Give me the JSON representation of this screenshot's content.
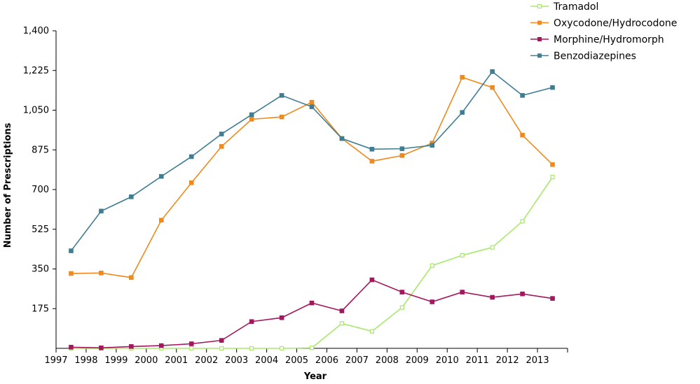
{
  "chart_data": {
    "type": "line",
    "title": "",
    "xlabel": "Year",
    "ylabel": "Number of Prescriptions",
    "x": [
      "1997",
      "1998",
      "1999",
      "2000",
      "2001",
      "2002",
      "2003",
      "2004",
      "2005",
      "2006",
      "2007",
      "2008",
      "2009",
      "2010",
      "2011",
      "2012",
      "2013"
    ],
    "ylim": [
      0,
      1400
    ],
    "y_ticks": [
      175,
      350,
      525,
      700,
      875,
      1050,
      1225,
      1400
    ],
    "y_tick_labels": [
      "175",
      "350",
      "525",
      "700",
      "875",
      "1,050",
      "1,225",
      "1,400"
    ],
    "grid": false,
    "legend_position": "top-right",
    "series": [
      {
        "name": "Tramadol",
        "color": "#a8e86a",
        "marker": "hollow-square",
        "values": [
          0,
          0,
          0,
          0,
          0,
          0,
          0,
          0,
          2,
          110,
          75,
          180,
          365,
          410,
          445,
          560,
          755
        ]
      },
      {
        "name": "Oxycodone/Hydrocodone",
        "color": "#ee8a1e",
        "marker": "square",
        "values": [
          330,
          332,
          312,
          565,
          730,
          890,
          1010,
          1020,
          1085,
          925,
          825,
          850,
          905,
          1195,
          1150,
          940,
          810
        ]
      },
      {
        "name": "Morphine/Hydromorph",
        "color": "#a3175e",
        "marker": "square",
        "values": [
          5,
          2,
          8,
          12,
          20,
          35,
          118,
          135,
          200,
          165,
          302,
          248,
          205,
          248,
          225,
          240,
          220
        ]
      },
      {
        "name": "Benzodiazepines",
        "color": "#3f7d94",
        "marker": "square",
        "values": [
          430,
          605,
          668,
          758,
          845,
          945,
          1030,
          1115,
          1065,
          925,
          878,
          880,
          895,
          1040,
          1220,
          1115,
          1150
        ]
      }
    ]
  }
}
